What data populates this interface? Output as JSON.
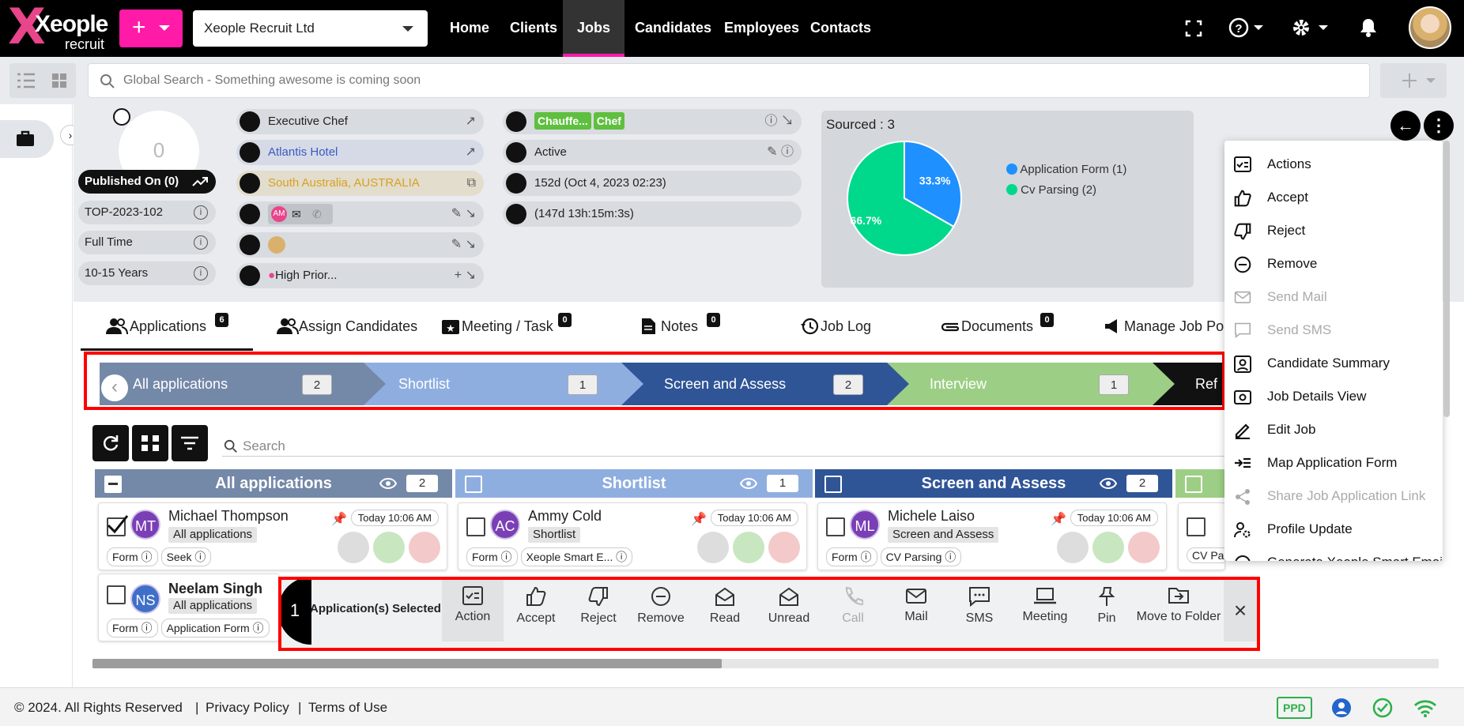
{
  "topnav": {
    "logo_word": "Xeople",
    "logo_sub": "recruit",
    "company": "Xeople Recruit Ltd",
    "links": [
      "Home",
      "Clients",
      "Jobs",
      "Candidates",
      "Employees",
      "Contacts"
    ],
    "active_link": "Jobs",
    "accent_color": "#ff1aa7"
  },
  "search": {
    "placeholder": "Global Search - Something awesome is coming soon"
  },
  "job": {
    "applicant_count": "0",
    "published": "Published On (0)",
    "ref": "TOP-2023-102",
    "employment_type": "Full Time",
    "experience": "10-15 Years",
    "title": "Executive Chef",
    "client": "Atlantis Hotel",
    "location": "South Australia, AUSTRALIA",
    "contact_initials": "AM",
    "priority": "High Prior...",
    "tags": [
      "Chauffe...",
      "Chef"
    ],
    "status": "Active",
    "age": "152d (Oct 4, 2023 02:23)",
    "elapsed": "(147d 13h:15m:3s)"
  },
  "sourced": {
    "title": "Sourced : 3",
    "legend": [
      {
        "label": "Application Form (1)",
        "color": "#1e90ff"
      },
      {
        "label": "Cv Parsing (2)",
        "color": "#00d98b"
      }
    ],
    "slices": [
      {
        "label": "33.3%",
        "value": 33.3,
        "color": "#1e90ff"
      },
      {
        "label": "66.7%",
        "value": 66.7,
        "color": "#00d98b"
      }
    ]
  },
  "tabs": [
    {
      "label": "Applications",
      "badge": "6"
    },
    {
      "label": "Assign Candidates",
      "badge": ""
    },
    {
      "label": "Meeting / Task",
      "badge": "0"
    },
    {
      "label": "Notes",
      "badge": "0"
    },
    {
      "label": "Job Log",
      "badge": ""
    },
    {
      "label": "Documents",
      "badge": "0"
    },
    {
      "label": "Manage Job Po",
      "badge": ""
    }
  ],
  "stages": [
    {
      "label": "All applications",
      "count": "2",
      "color": "#7488a8"
    },
    {
      "label": "Shortlist",
      "count": "1",
      "color": "#8faee0"
    },
    {
      "label": "Screen and Assess",
      "count": "2",
      "color": "#2f5597"
    },
    {
      "label": "Interview",
      "count": "1",
      "color": "#9ccf85"
    },
    {
      "label": "Ref",
      "count": "",
      "color": "#111111"
    }
  ],
  "list_search": {
    "placeholder": "Search"
  },
  "columns": [
    {
      "title": "All applications",
      "count": "2",
      "color": "#7488a8"
    },
    {
      "title": "Shortlist",
      "count": "1",
      "color": "#8faee0"
    },
    {
      "title": "Screen and Assess",
      "count": "2",
      "color": "#2f5597"
    }
  ],
  "cards": [
    {
      "initials": "MT",
      "name": "Michael Thompson",
      "stage": "All applications",
      "time": "Today 10:06 AM",
      "tag1": "Form",
      "tag2": "Seek",
      "av": "#7b3fb5"
    },
    {
      "initials": "AC",
      "name": "Ammy Cold",
      "stage": "Shortlist",
      "time": "Today 10:06 AM",
      "tag1": "Form",
      "tag2": "Xeople Smart E...",
      "av": "#7b3fb5"
    },
    {
      "initials": "ML",
      "name": "Michele Laiso",
      "stage": "Screen and Assess",
      "time": "Today 10:06 AM",
      "tag1": "Form",
      "tag2": "CV Parsing",
      "av": "#7b3fb5"
    },
    {
      "initials": "NS",
      "name": "Neelam Singh",
      "stage": "All applications",
      "time": "",
      "tag1": "Form",
      "tag2": "Application Form",
      "av": "#3f6fc9"
    }
  ],
  "partial_card_tag": "CV Par",
  "dropdown": [
    {
      "label": "Actions",
      "enabled": true
    },
    {
      "label": "Accept",
      "enabled": true
    },
    {
      "label": "Reject",
      "enabled": true
    },
    {
      "label": "Remove",
      "enabled": true
    },
    {
      "label": "Send Mail",
      "enabled": false
    },
    {
      "label": "Send SMS",
      "enabled": false
    },
    {
      "label": "Candidate Summary",
      "enabled": true
    },
    {
      "label": "Job Details View",
      "enabled": true
    },
    {
      "label": "Edit Job",
      "enabled": true
    },
    {
      "label": "Map Application Form",
      "enabled": true
    },
    {
      "label": "Share Job Application Link",
      "enabled": false
    },
    {
      "label": "Profile Update",
      "enabled": true
    },
    {
      "label": "Generate Xeople Smart Email",
      "enabled": true
    }
  ],
  "selection": {
    "count": "1",
    "label": "Application(s) Selected",
    "actions": [
      {
        "label": "Action",
        "enabled": true
      },
      {
        "label": "Accept",
        "enabled": true
      },
      {
        "label": "Reject",
        "enabled": true
      },
      {
        "label": "Remove",
        "enabled": true
      },
      {
        "label": "Read",
        "enabled": true
      },
      {
        "label": "Unread",
        "enabled": true
      },
      {
        "label": "Call",
        "enabled": false
      },
      {
        "label": "Mail",
        "enabled": true
      },
      {
        "label": "SMS",
        "enabled": true
      },
      {
        "label": "Meeting",
        "enabled": true
      },
      {
        "label": "Pin",
        "enabled": true
      },
      {
        "label": "Move to Folder",
        "enabled": true
      }
    ]
  },
  "footer": {
    "copyright": "© 2024. All Rights Reserved",
    "sep": "|",
    "privacy": "Privacy Policy",
    "terms": "Terms of Use",
    "ppd": "PPD"
  }
}
